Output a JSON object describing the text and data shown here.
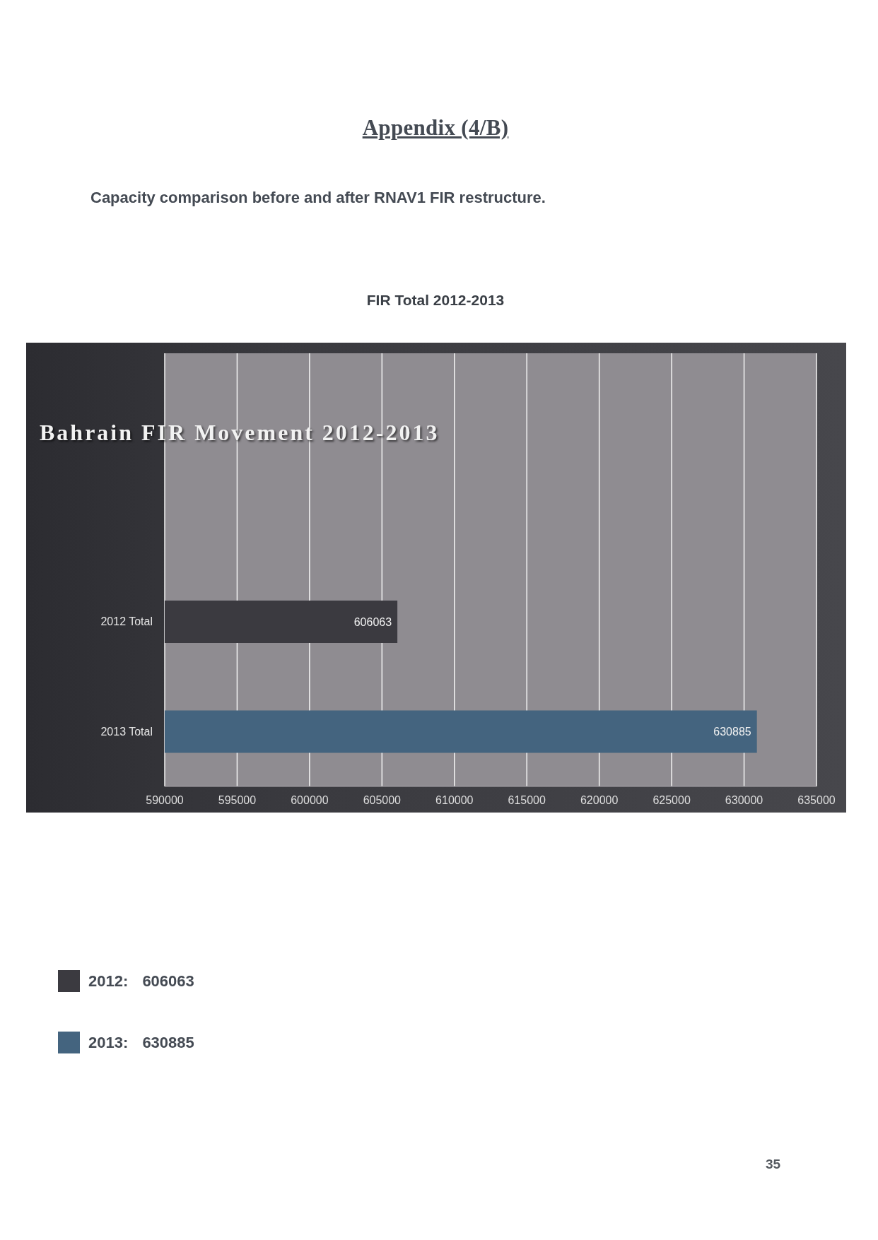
{
  "chart_data": {
    "type": "bar",
    "orientation": "horizontal",
    "title": "Bahrain FIR Movement 2012-2013",
    "subtitle": "FIR Total 2012-2013",
    "annotations": [
      "Appendix (4/B)",
      "Capacity comparison before and after RNAV1 FIR restructure.",
      "35"
    ],
    "categories": [
      "2012 Total",
      "2013 Total"
    ],
    "series": [
      {
        "name": "2012: 606063",
        "color": "#3b3a40",
        "values": [
          606063,
          null
        ]
      },
      {
        "name": "2013: 630885",
        "color": "#44647f",
        "values": [
          null,
          630885
        ]
      }
    ],
    "xlim": [
      590000,
      635000
    ],
    "xticks": [
      590000,
      595000,
      600000,
      605000,
      610000,
      615000,
      620000,
      625000,
      630000,
      635000
    ],
    "grid": "x",
    "legend": "bottom left",
    "data_labels": true
  }
}
